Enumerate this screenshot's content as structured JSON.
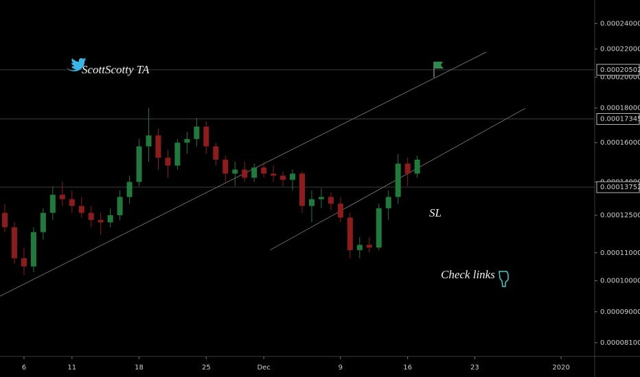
{
  "chart_data": {
    "type": "candlestick",
    "log_scale": true,
    "up_color": "#1f7a3c",
    "down_color": "#8e1c1c",
    "ylim": [
      7.73e-05,
      0.00026
    ],
    "yticks": [
      {
        "value": 0.00024,
        "label": "0.00024000"
      },
      {
        "value": 0.00022,
        "label": "0.00022000"
      },
      {
        "value": 0.0002,
        "label": "0.00020000"
      },
      {
        "value": 0.00018,
        "label": "0.00018000"
      },
      {
        "value": 0.00016,
        "label": "0.00016000"
      },
      {
        "value": 0.00014,
        "label": "0.00014000"
      },
      {
        "value": 0.000125,
        "label": "0.00012500"
      },
      {
        "value": 0.00011,
        "label": "0.00011000"
      },
      {
        "value": 0.0001,
        "label": "0.00010000"
      },
      {
        "value": 9e-05,
        "label": "0.00009000"
      },
      {
        "value": 8.1e-05,
        "label": "0.00008100"
      }
    ],
    "price_lines": [
      0.00020502,
      0.00017345,
      0.00013752
    ],
    "xlim": [
      "2019-11-04",
      "2020-01-05"
    ],
    "xticks": [
      {
        "value": "2019-11-06",
        "label": "6"
      },
      {
        "value": "2019-11-11",
        "label": "11"
      },
      {
        "value": "2019-11-18",
        "label": "18"
      },
      {
        "value": "2019-11-25",
        "label": "25"
      },
      {
        "value": "2019-12-01",
        "label": "Dec"
      },
      {
        "value": "2019-12-09",
        "label": "9"
      },
      {
        "value": "2019-12-16",
        "label": "16"
      },
      {
        "value": "2019-12-23",
        "label": "23"
      },
      {
        "value": "2020-01-01",
        "label": "2020"
      }
    ],
    "annotations": [
      "ScottScotty TA",
      "SL",
      "Check links"
    ],
    "x": [
      "2019-11-04",
      "2019-11-05",
      "2019-11-06",
      "2019-11-07",
      "2019-11-08",
      "2019-11-09",
      "2019-11-10",
      "2019-11-11",
      "2019-11-12",
      "2019-11-13",
      "2019-11-14",
      "2019-11-15",
      "2019-11-16",
      "2019-11-17",
      "2019-11-18",
      "2019-11-19",
      "2019-11-20",
      "2019-11-21",
      "2019-11-22",
      "2019-11-23",
      "2019-11-24",
      "2019-11-25",
      "2019-11-26",
      "2019-11-27",
      "2019-11-28",
      "2019-11-29",
      "2019-11-30",
      "2019-12-01",
      "2019-12-02",
      "2019-12-03",
      "2019-12-04",
      "2019-12-05",
      "2019-12-06",
      "2019-12-07",
      "2019-12-08",
      "2019-12-09",
      "2019-12-10",
      "2019-12-11",
      "2019-12-12",
      "2019-12-13",
      "2019-12-14",
      "2019-12-15",
      "2019-12-16",
      "2019-12-17"
    ],
    "open": [
      0.000126,
      0.00012,
      0.000108,
      0.000105,
      0.000118,
      0.000126,
      0.000134,
      0.000132,
      0.000129,
      0.000126,
      0.000123,
      0.000122,
      0.000125,
      0.000133,
      0.00014,
      0.000158,
      0.000164,
      0.000152,
      0.000148,
      0.00016,
      0.000162,
      0.000169,
      0.000158,
      0.000151,
      0.000144,
      0.000146,
      0.000142,
      0.000147,
      0.000144,
      0.000143,
      0.000141,
      0.000144,
      0.000129,
      0.000132,
      0.000133,
      0.00013,
      0.000124,
      0.000111,
      0.000113,
      0.000112,
      0.000128,
      0.000133,
      0.000149,
      0.000144
    ],
    "high": [
      0.00013,
      0.000122,
      0.000112,
      0.00012,
      0.000128,
      0.000138,
      0.00014,
      0.000136,
      0.000133,
      0.000129,
      0.000126,
      0.000128,
      0.000136,
      0.000143,
      0.000162,
      0.00018,
      0.000168,
      0.000156,
      0.000162,
      0.000166,
      0.000174,
      0.000172,
      0.00016,
      0.000153,
      0.00015,
      0.00015,
      0.000149,
      0.00015,
      0.000148,
      0.000145,
      0.000146,
      0.000145,
      0.000136,
      0.000137,
      0.000135,
      0.000133,
      0.000126,
      0.000116,
      0.000116,
      0.00013,
      0.000136,
      0.000154,
      0.000152,
      0.000153
    ],
    "low": [
      0.000118,
      0.000106,
      0.000102,
      0.000103,
      0.000115,
      0.000123,
      0.000129,
      0.000126,
      0.000124,
      0.00012,
      0.000117,
      0.00012,
      0.000123,
      0.00013,
      0.000138,
      0.00015,
      0.000146,
      0.000142,
      0.000146,
      0.000154,
      0.000158,
      0.000154,
      0.000148,
      0.00014,
      0.000138,
      0.00014,
      0.00014,
      0.000142,
      0.00014,
      0.000138,
      0.000136,
      0.000126,
      0.000122,
      0.000128,
      0.000127,
      0.000122,
      0.000108,
      0.000108,
      0.00011,
      0.000111,
      0.000123,
      0.00013,
      0.000138,
      0.000142
    ],
    "close": [
      0.00012,
      0.000108,
      0.000105,
      0.000118,
      0.000126,
      0.000134,
      0.000132,
      0.000129,
      0.000126,
      0.000123,
      0.000122,
      0.000125,
      0.000133,
      0.00014,
      0.000158,
      0.000164,
      0.000152,
      0.000148,
      0.00016,
      0.000162,
      0.000169,
      0.000158,
      0.000151,
      0.000144,
      0.000146,
      0.000142,
      0.000147,
      0.000144,
      0.000143,
      0.000141,
      0.000144,
      0.000129,
      0.000132,
      0.000133,
      0.00013,
      0.000124,
      0.000111,
      0.000113,
      0.000112,
      0.000128,
      0.000133,
      0.000149,
      0.000144,
      0.000151
    ]
  }
}
